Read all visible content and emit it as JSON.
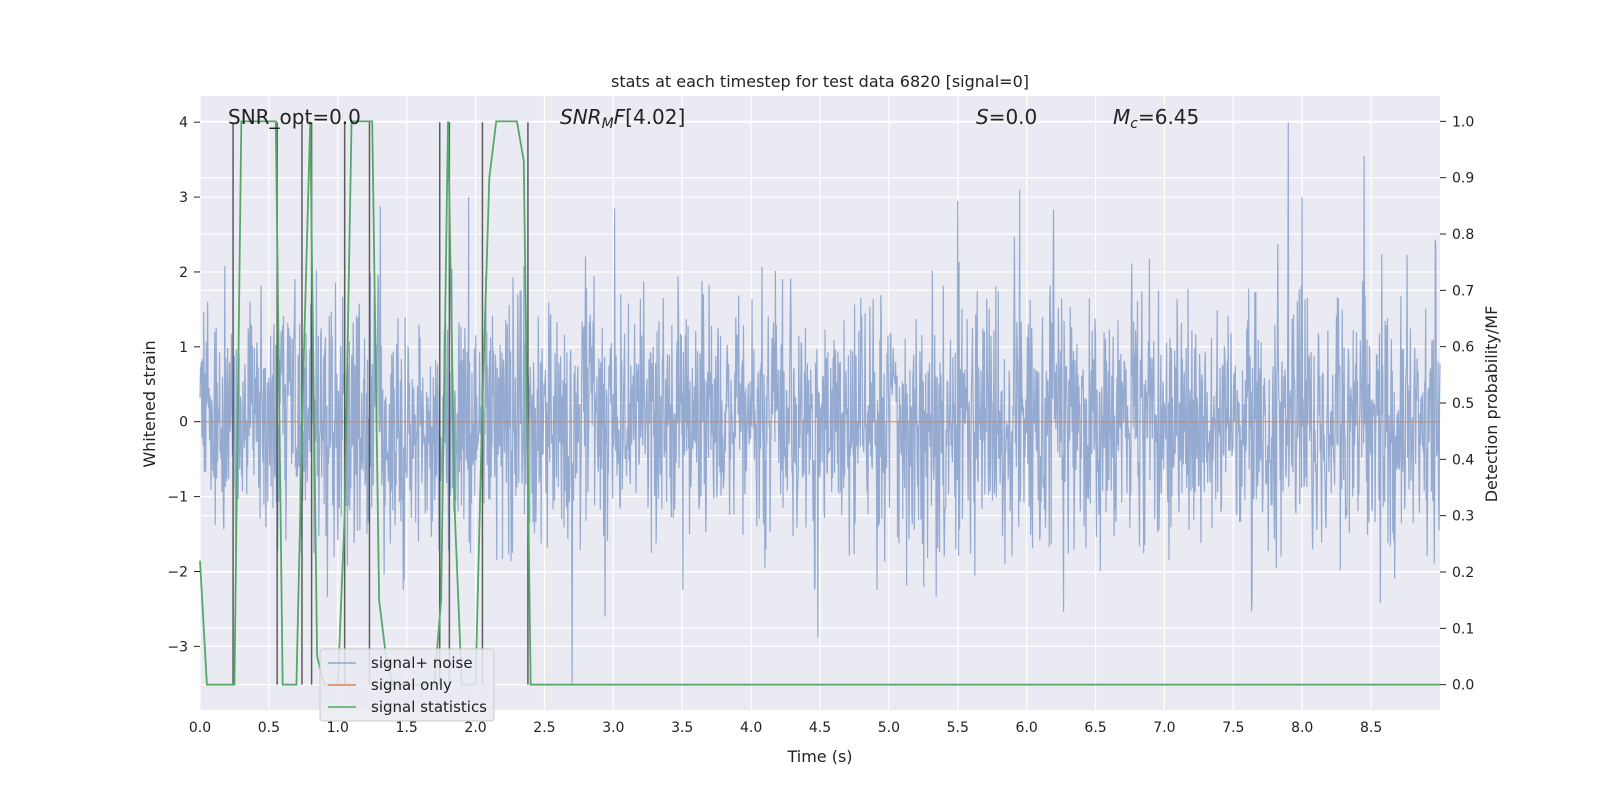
{
  "chart_data": {
    "type": "line",
    "title": "stats at each timestep for test data 6820 [signal=0]",
    "xlabel": "Time (s)",
    "ylabel_left": "Whitened strain",
    "ylabel_right": "Detection probability/MF",
    "xlim": [
      0.0,
      9.0
    ],
    "ylim_left": [
      -3.85,
      4.35
    ],
    "ylim_right": [
      -0.045,
      1.045
    ],
    "x_ticks": [
      "0.0",
      "0.5",
      "1.0",
      "1.5",
      "2.0",
      "2.5",
      "3.0",
      "3.5",
      "4.0",
      "4.5",
      "5.0",
      "5.5",
      "6.0",
      "6.5",
      "7.0",
      "7.5",
      "8.0",
      "8.5"
    ],
    "y_left_ticks": [
      "−3",
      "−2",
      "−1",
      "0",
      "1",
      "2",
      "3",
      "4"
    ],
    "y_right_ticks": [
      "0.0",
      "0.1",
      "0.2",
      "0.3",
      "0.4",
      "0.5",
      "0.6",
      "0.7",
      "0.8",
      "0.9",
      "1.0"
    ],
    "grid": true,
    "legend_position": "lower-left",
    "annotations": {
      "snr_opt": "SNR_opt=0.0",
      "snr_mf": "[4.02]",
      "s": "=0.0",
      "mc": "=6.45"
    },
    "series": [
      {
        "name": "signal+ noise",
        "color": "#8fa6cd",
        "axis": "left",
        "description": "whitened noise, approx. gaussian, std ~0.85, range about -3.5 to 4.0",
        "peaks": [
          [
            7.9,
            4.0
          ],
          [
            8.45,
            3.55
          ],
          [
            5.5,
            2.95
          ],
          [
            5.95,
            3.1
          ],
          [
            8.0,
            3.0
          ],
          [
            1.95,
            3.0
          ],
          [
            2.7,
            -3.5
          ]
        ]
      },
      {
        "name": "signal only",
        "color": "#dd8452",
        "axis": "left",
        "x": [
          0.0,
          9.0
        ],
        "values": [
          0.0,
          0.0
        ]
      },
      {
        "name": "signal statistics",
        "color": "#55a868",
        "axis": "right",
        "x": [
          0.0,
          0.05,
          0.1,
          0.15,
          0.2,
          0.25,
          0.3,
          0.35,
          0.4,
          0.45,
          0.5,
          0.55,
          0.6,
          0.65,
          0.7,
          0.75,
          0.8,
          0.85,
          0.9,
          0.95,
          1.0,
          1.05,
          1.1,
          1.15,
          1.2,
          1.25,
          1.3,
          1.35,
          1.4,
          1.45,
          1.5,
          1.55,
          1.6,
          1.65,
          1.7,
          1.75,
          1.8,
          1.85,
          1.9,
          1.95,
          2.0,
          2.05,
          2.1,
          2.15,
          2.2,
          2.25,
          2.3,
          2.35,
          2.4,
          2.45,
          2.5,
          2.6,
          2.8,
          3.0,
          5.0,
          7.0,
          9.0
        ],
        "values": [
          0.22,
          0.0,
          0.0,
          0.0,
          0.0,
          0.0,
          1.0,
          1.0,
          1.0,
          1.0,
          1.0,
          1.0,
          0.0,
          0.0,
          0.0,
          0.55,
          1.0,
          0.05,
          0.0,
          0.0,
          0.0,
          0.3,
          1.0,
          1.0,
          1.0,
          1.0,
          0.15,
          0.05,
          0.0,
          0.0,
          0.0,
          0.0,
          0.0,
          0.0,
          0.0,
          0.15,
          1.0,
          0.3,
          0.0,
          0.0,
          0.0,
          0.5,
          0.9,
          1.0,
          1.0,
          1.0,
          1.0,
          0.93,
          0.0,
          0.0,
          0.0,
          0.0,
          0.0,
          0.0,
          0.0,
          0.0,
          0.0
        ]
      }
    ],
    "event_lines_x": [
      0.24,
      0.56,
      0.74,
      0.81,
      1.05,
      1.23,
      1.74,
      1.81,
      2.05,
      2.38
    ]
  }
}
